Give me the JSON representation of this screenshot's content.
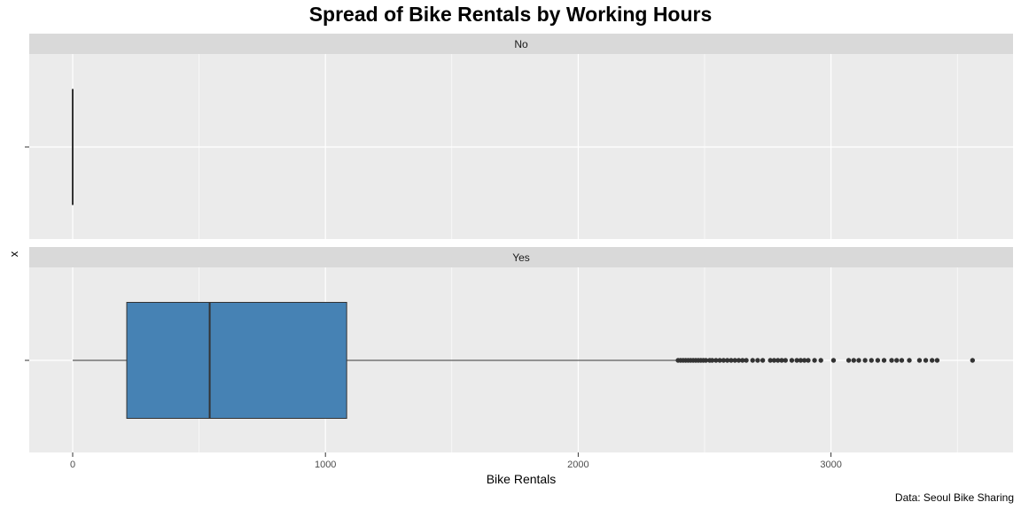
{
  "chart_data": {
    "type": "boxplot",
    "title": "Spread of Bike Rentals by Working Hours",
    "xlabel": "Bike Rentals",
    "ylabel": "x",
    "caption": "Data: Seoul Bike Sharing",
    "xlim": [
      -180,
      3740
    ],
    "x_ticks": [
      0,
      1000,
      2000,
      3000
    ],
    "x_tick_labels": [
      "0",
      "1000",
      "2000",
      "3000"
    ],
    "grid": true,
    "panels": [
      {
        "name": "No",
        "stats": {
          "min": 0,
          "q1": 0,
          "median": 0,
          "q3": 0,
          "max": 0
        },
        "outliers": []
      },
      {
        "name": "Yes",
        "stats": {
          "min": 0,
          "q1": 214,
          "median": 542,
          "q3": 1084,
          "max": 2390
        },
        "outliers": [
          2395,
          2405,
          2415,
          2425,
          2435,
          2445,
          2455,
          2465,
          2475,
          2485,
          2495,
          2505,
          2520,
          2530,
          2545,
          2560,
          2575,
          2590,
          2605,
          2620,
          2635,
          2650,
          2665,
          2690,
          2710,
          2730,
          2760,
          2775,
          2790,
          2805,
          2820,
          2845,
          2865,
          2880,
          2895,
          2910,
          2935,
          2960,
          3010,
          3070,
          3090,
          3110,
          3135,
          3160,
          3185,
          3210,
          3240,
          3260,
          3280,
          3310,
          3350,
          3375,
          3400,
          3420,
          3560
        ]
      }
    ],
    "colors": {
      "box_fill": "#4682B4",
      "panel_bg": "#EBEBEB",
      "strip_bg": "#D9D9D9",
      "grid": "#FFFFFF",
      "line": "#333333",
      "tick_text": "#4D4D4D"
    }
  }
}
